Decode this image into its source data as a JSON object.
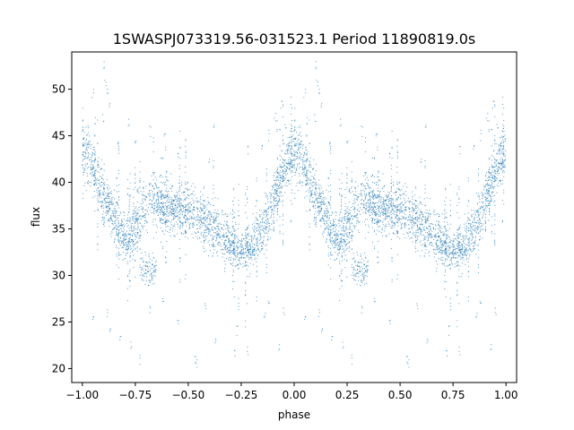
{
  "chart_data": {
    "type": "scatter",
    "title": "1SWASPJ073319.56-031523.1 Period 11890819.0s",
    "xlabel": "phase",
    "ylabel": "flux",
    "xlim": [
      -1.05,
      1.05
    ],
    "ylim": [
      18.5,
      54
    ],
    "grid": false,
    "legend": "none",
    "xticks": [
      -1.0,
      -0.75,
      -0.5,
      -0.25,
      0.0,
      0.25,
      0.5,
      0.75,
      1.0
    ],
    "xtick_labels": [
      "−1.00",
      "−0.75",
      "−0.50",
      "−0.25",
      "0.00",
      "0.25",
      "0.50",
      "0.75",
      "1.00"
    ],
    "yticks": [
      20,
      25,
      30,
      35,
      40,
      45,
      50
    ],
    "ytick_labels": [
      "20",
      "25",
      "30",
      "35",
      "40",
      "45",
      "50"
    ],
    "point_color": "#1f77b4",
    "series": [
      {
        "values_description_free": true,
        "trend": [
          [
            0.0,
            43.2
          ],
          [
            0.03,
            42.6
          ],
          [
            0.06,
            41.0
          ],
          [
            0.09,
            39.2
          ],
          [
            0.12,
            37.5
          ],
          [
            0.15,
            36.2
          ],
          [
            0.18,
            35.0
          ],
          [
            0.21,
            34.0
          ],
          [
            0.25,
            35.5
          ],
          [
            0.28,
            37.0
          ],
          [
            0.32,
            38.2
          ],
          [
            0.36,
            38.0
          ],
          [
            0.4,
            37.5
          ],
          [
            0.45,
            37.2
          ],
          [
            0.5,
            37.0
          ],
          [
            0.55,
            36.3
          ],
          [
            0.6,
            35.5
          ],
          [
            0.65,
            34.5
          ],
          [
            0.7,
            33.5
          ],
          [
            0.75,
            33.0
          ],
          [
            0.8,
            33.3
          ],
          [
            0.85,
            35.0
          ],
          [
            0.88,
            36.5
          ],
          [
            0.91,
            38.5
          ],
          [
            0.94,
            40.5
          ],
          [
            0.97,
            42.3
          ],
          [
            1.0,
            43.2
          ]
        ],
        "dips": [
          {
            "x0": 0.2,
            "x1": 0.25,
            "y": 33.0
          },
          {
            "x0": 0.27,
            "x1": 0.35,
            "y": 30.5
          },
          {
            "x0": 0.79,
            "x1": 0.83,
            "y": 33.0
          }
        ],
        "scatter_width": 1.8,
        "outliers_low": [
          [
            0.12,
            26.0
          ],
          [
            0.13,
            24.5
          ],
          [
            0.18,
            23.5
          ],
          [
            0.23,
            22.5
          ],
          [
            0.27,
            21.0
          ],
          [
            0.32,
            26.5
          ],
          [
            0.45,
            25.0
          ],
          [
            0.53,
            21.0
          ],
          [
            0.54,
            20.5
          ],
          [
            0.63,
            23.0
          ],
          [
            0.72,
            21.5
          ],
          [
            0.73,
            24.0
          ],
          [
            0.78,
            22.0
          ],
          [
            0.86,
            26.0
          ],
          [
            0.93,
            22.0
          ],
          [
            0.95,
            26.0
          ],
          [
            0.05,
            25.5
          ],
          [
            0.38,
            27.5
          ],
          [
            0.58,
            27.0
          ],
          [
            0.88,
            27.0
          ]
        ],
        "outliers_high": [
          [
            0.1,
            52.5
          ],
          [
            0.11,
            51.0
          ],
          [
            0.12,
            49.5
          ],
          [
            0.13,
            48.0
          ],
          [
            0.1,
            47.0
          ],
          [
            0.05,
            49.5
          ],
          [
            0.06,
            46.5
          ],
          [
            0.03,
            45.5
          ],
          [
            0.22,
            46.5
          ],
          [
            0.25,
            44.5
          ],
          [
            0.39,
            45.0
          ],
          [
            0.45,
            43.0
          ],
          [
            0.6,
            42.0
          ],
          [
            0.78,
            43.5
          ],
          [
            0.85,
            44.0
          ],
          [
            0.88,
            45.0
          ],
          [
            0.91,
            47.0
          ],
          [
            0.92,
            46.0
          ],
          [
            0.94,
            48.5
          ],
          [
            0.96,
            46.0
          ],
          [
            0.98,
            44.5
          ],
          [
            0.62,
            46.5
          ],
          [
            0.17,
            44.0
          ],
          [
            0.32,
            45.5
          ]
        ]
      }
    ]
  }
}
